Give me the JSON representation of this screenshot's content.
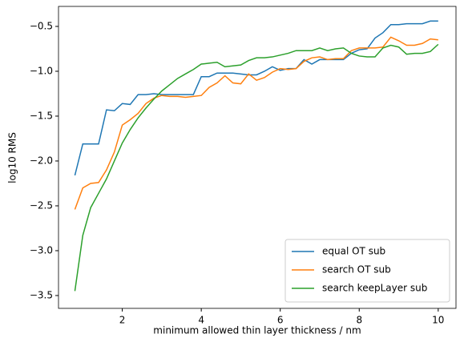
{
  "chart_data": {
    "type": "line",
    "xlabel": "minimum allowed thin layer thickness / nm",
    "ylabel": "log10 RMS",
    "x": [
      0.8,
      1.0,
      1.2,
      1.4,
      1.6,
      1.8,
      2.0,
      2.2,
      2.4,
      2.6,
      2.8,
      3.0,
      3.2,
      3.4,
      3.6,
      3.8,
      4.0,
      4.2,
      4.4,
      4.6,
      4.8,
      5.0,
      5.2,
      5.4,
      5.6,
      5.8,
      6.0,
      6.2,
      6.4,
      6.6,
      6.8,
      7.0,
      7.2,
      7.4,
      7.6,
      7.8,
      8.0,
      8.2,
      8.4,
      8.6,
      8.8,
      9.0,
      9.2,
      9.4,
      9.6,
      9.8,
      10.0
    ],
    "series": [
      {
        "name": "equal OT sub",
        "color": "#1f77b4",
        "values": [
          -2.16,
          -1.81,
          -1.81,
          -1.81,
          -1.43,
          -1.44,
          -1.36,
          -1.37,
          -1.26,
          -1.26,
          -1.25,
          -1.26,
          -1.26,
          -1.26,
          -1.26,
          -1.26,
          -1.06,
          -1.06,
          -1.02,
          -1.02,
          -1.02,
          -1.03,
          -1.04,
          -1.04,
          -1.0,
          -0.95,
          -0.99,
          -0.97,
          -0.97,
          -0.87,
          -0.92,
          -0.87,
          -0.87,
          -0.87,
          -0.87,
          -0.8,
          -0.76,
          -0.75,
          -0.63,
          -0.57,
          -0.48,
          -0.48,
          -0.47,
          -0.47,
          -0.47,
          -0.44,
          -0.44
        ]
      },
      {
        "name": "search OT sub",
        "color": "#ff7f0e",
        "values": [
          -2.54,
          -2.3,
          -2.25,
          -2.24,
          -2.1,
          -1.9,
          -1.6,
          -1.54,
          -1.47,
          -1.36,
          -1.3,
          -1.27,
          -1.28,
          -1.28,
          -1.29,
          -1.28,
          -1.27,
          -1.18,
          -1.13,
          -1.05,
          -1.13,
          -1.14,
          -1.03,
          -1.1,
          -1.07,
          -1.01,
          -0.97,
          -0.98,
          -0.97,
          -0.89,
          -0.85,
          -0.84,
          -0.87,
          -0.86,
          -0.86,
          -0.77,
          -0.74,
          -0.74,
          -0.74,
          -0.73,
          -0.62,
          -0.66,
          -0.71,
          -0.71,
          -0.69,
          -0.64,
          -0.65
        ]
      },
      {
        "name": "search keepLayer sub",
        "color": "#2ca02c",
        "values": [
          -3.45,
          -2.83,
          -2.52,
          -2.36,
          -2.2,
          -2.0,
          -1.8,
          -1.65,
          -1.52,
          -1.41,
          -1.31,
          -1.22,
          -1.15,
          -1.08,
          -1.03,
          -0.98,
          -0.92,
          -0.91,
          -0.9,
          -0.95,
          -0.94,
          -0.93,
          -0.88,
          -0.85,
          -0.85,
          -0.84,
          -0.82,
          -0.8,
          -0.77,
          -0.77,
          -0.77,
          -0.74,
          -0.77,
          -0.75,
          -0.74,
          -0.8,
          -0.83,
          -0.84,
          -0.84,
          -0.74,
          -0.71,
          -0.73,
          -0.81,
          -0.8,
          -0.8,
          -0.78,
          -0.7
        ]
      }
    ],
    "xlim": [
      0.385,
      10.45
    ],
    "ylim": [
      -3.643,
      -0.277
    ],
    "xticks": [
      2,
      4,
      6,
      8,
      10
    ],
    "yticks": [
      {
        "value": -3.5,
        "label": "−3.5"
      },
      {
        "value": -3.0,
        "label": "−3.0"
      },
      {
        "value": -2.5,
        "label": "−2.5"
      },
      {
        "value": -2.0,
        "label": "−2.0"
      },
      {
        "value": -1.5,
        "label": "−1.5"
      },
      {
        "value": -1.0,
        "label": "−1.0"
      },
      {
        "value": -0.5,
        "label": "−0.5"
      }
    ],
    "legend": "lower right"
  }
}
